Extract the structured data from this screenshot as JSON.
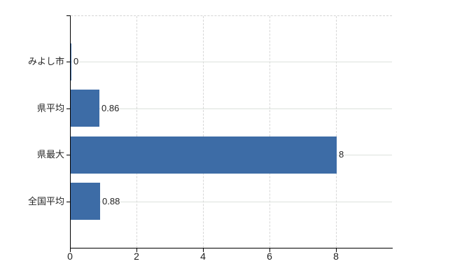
{
  "chart_data": {
    "type": "bar",
    "orientation": "horizontal",
    "title": "",
    "categories": [
      "みよし市",
      "県平均",
      "県最大",
      "全国平均"
    ],
    "values": [
      0,
      0.86,
      8,
      0.88
    ],
    "value_labels": [
      "0",
      "0.86",
      "8",
      "0.88"
    ],
    "x_tick_labels": [
      "0",
      "2",
      "4",
      "6",
      "8"
    ],
    "x_tick_values": [
      0,
      2,
      4,
      6,
      8
    ],
    "xlim": [
      0,
      9.68
    ],
    "grid_vertical": "dashed",
    "grid_horizontal": "solid-row-lines",
    "legend": false,
    "colors": {
      "bar": "#3d6ca6",
      "axis": "#000000",
      "vertical_grid": "#d7d7d7",
      "top_border": "#d4d4d4",
      "row_line": "#dce1dc",
      "tick_label_text": "#1f1f1f",
      "category_text": "#262626",
      "background": "#ffffff"
    }
  }
}
